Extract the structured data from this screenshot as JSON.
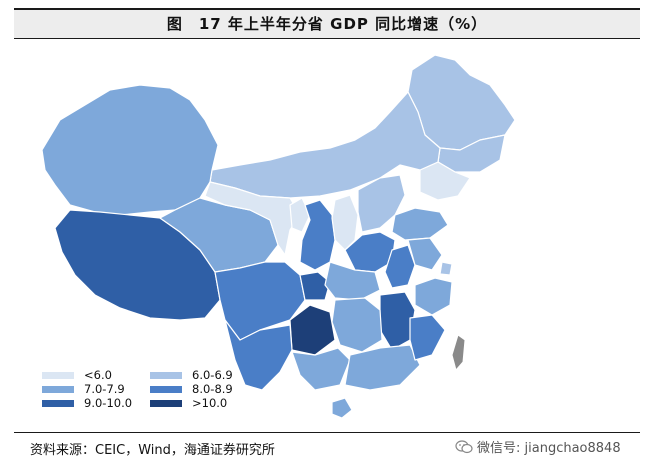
{
  "title": "图　17 年上半年分省 GDP 同比增速（%）",
  "source": "资料来源：CEIC，Wind，海通证券研究所",
  "watermark": "微信号: jiangchao8848",
  "legend": [
    {
      "label": "<6.0",
      "color": "#dbe6f3"
    },
    {
      "label": "6.0-6.9",
      "color": "#a8c3e6"
    },
    {
      "label": "7.0-7.9",
      "color": "#7ea8da"
    },
    {
      "label": "8.0-8.9",
      "color": "#4a7ec7"
    },
    {
      "label": "9.0-10.0",
      "color": "#2f5fa6"
    },
    {
      "label": ">10.0",
      "color": "#1d3f78"
    }
  ],
  "colors": {
    "taiwan": "#8a8a8a",
    "background": "#ffffff"
  }
}
